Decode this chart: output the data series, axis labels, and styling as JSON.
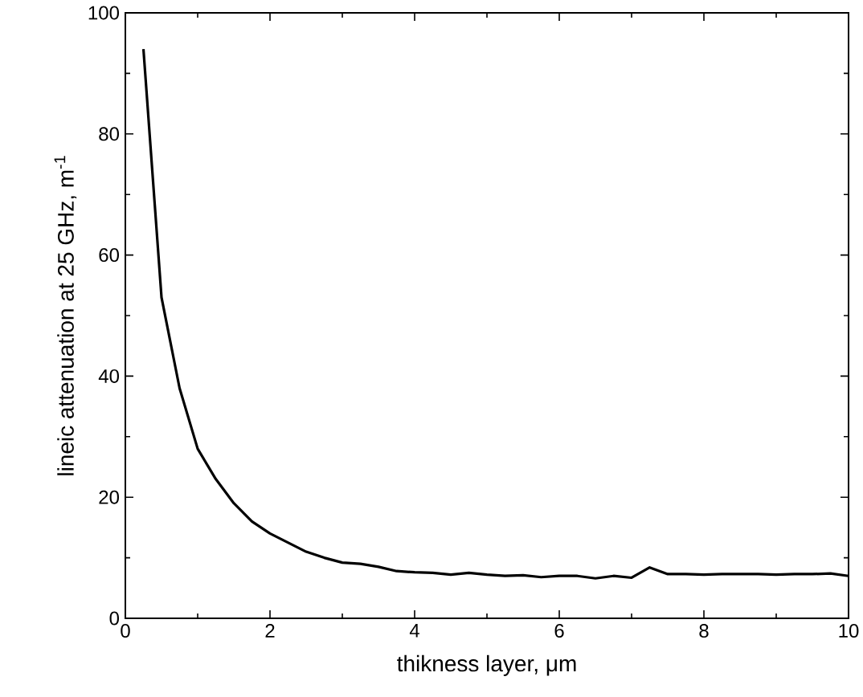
{
  "chart_data": {
    "type": "line",
    "xlabel": "thikness layer, μm",
    "ylabel": "lineic attenuation at 25 GHz, m$^{-1}$",
    "xlim": [
      0,
      10
    ],
    "ylim": [
      0,
      100
    ],
    "xticks": [
      0,
      2,
      4,
      6,
      8,
      10
    ],
    "yticks": [
      0,
      20,
      40,
      60,
      80,
      100
    ],
    "grid": false,
    "marker": "none",
    "line_style": "solid",
    "series": [
      {
        "color": "#000000",
        "x": [
          0.25,
          0.5,
          0.75,
          1,
          1.25,
          1.5,
          1.75,
          2,
          2.25,
          2.5,
          2.75,
          3,
          3.25,
          3.5,
          3.75,
          4,
          4.25,
          4.5,
          4.75,
          5,
          5.25,
          5.5,
          5.75,
          6,
          6.25,
          6.5,
          6.75,
          7,
          7.25,
          7.5,
          7.75,
          8,
          8.25,
          8.5,
          8.75,
          9,
          9.25,
          9.5,
          9.75,
          10
        ],
        "values": [
          94,
          53,
          38,
          28,
          23,
          19,
          16,
          14,
          12.5,
          11,
          10,
          9.2,
          9,
          8.5,
          7.8,
          7.6,
          7.5,
          7.2,
          7.5,
          7.2,
          7.0,
          7.1,
          6.8,
          7.0,
          7.0,
          6.6,
          7.0,
          6.7,
          8.4,
          7.3,
          7.3,
          7.2,
          7.3,
          7.3,
          7.3,
          7.2,
          7.3,
          7.3,
          7.4,
          7.0
        ]
      }
    ]
  }
}
